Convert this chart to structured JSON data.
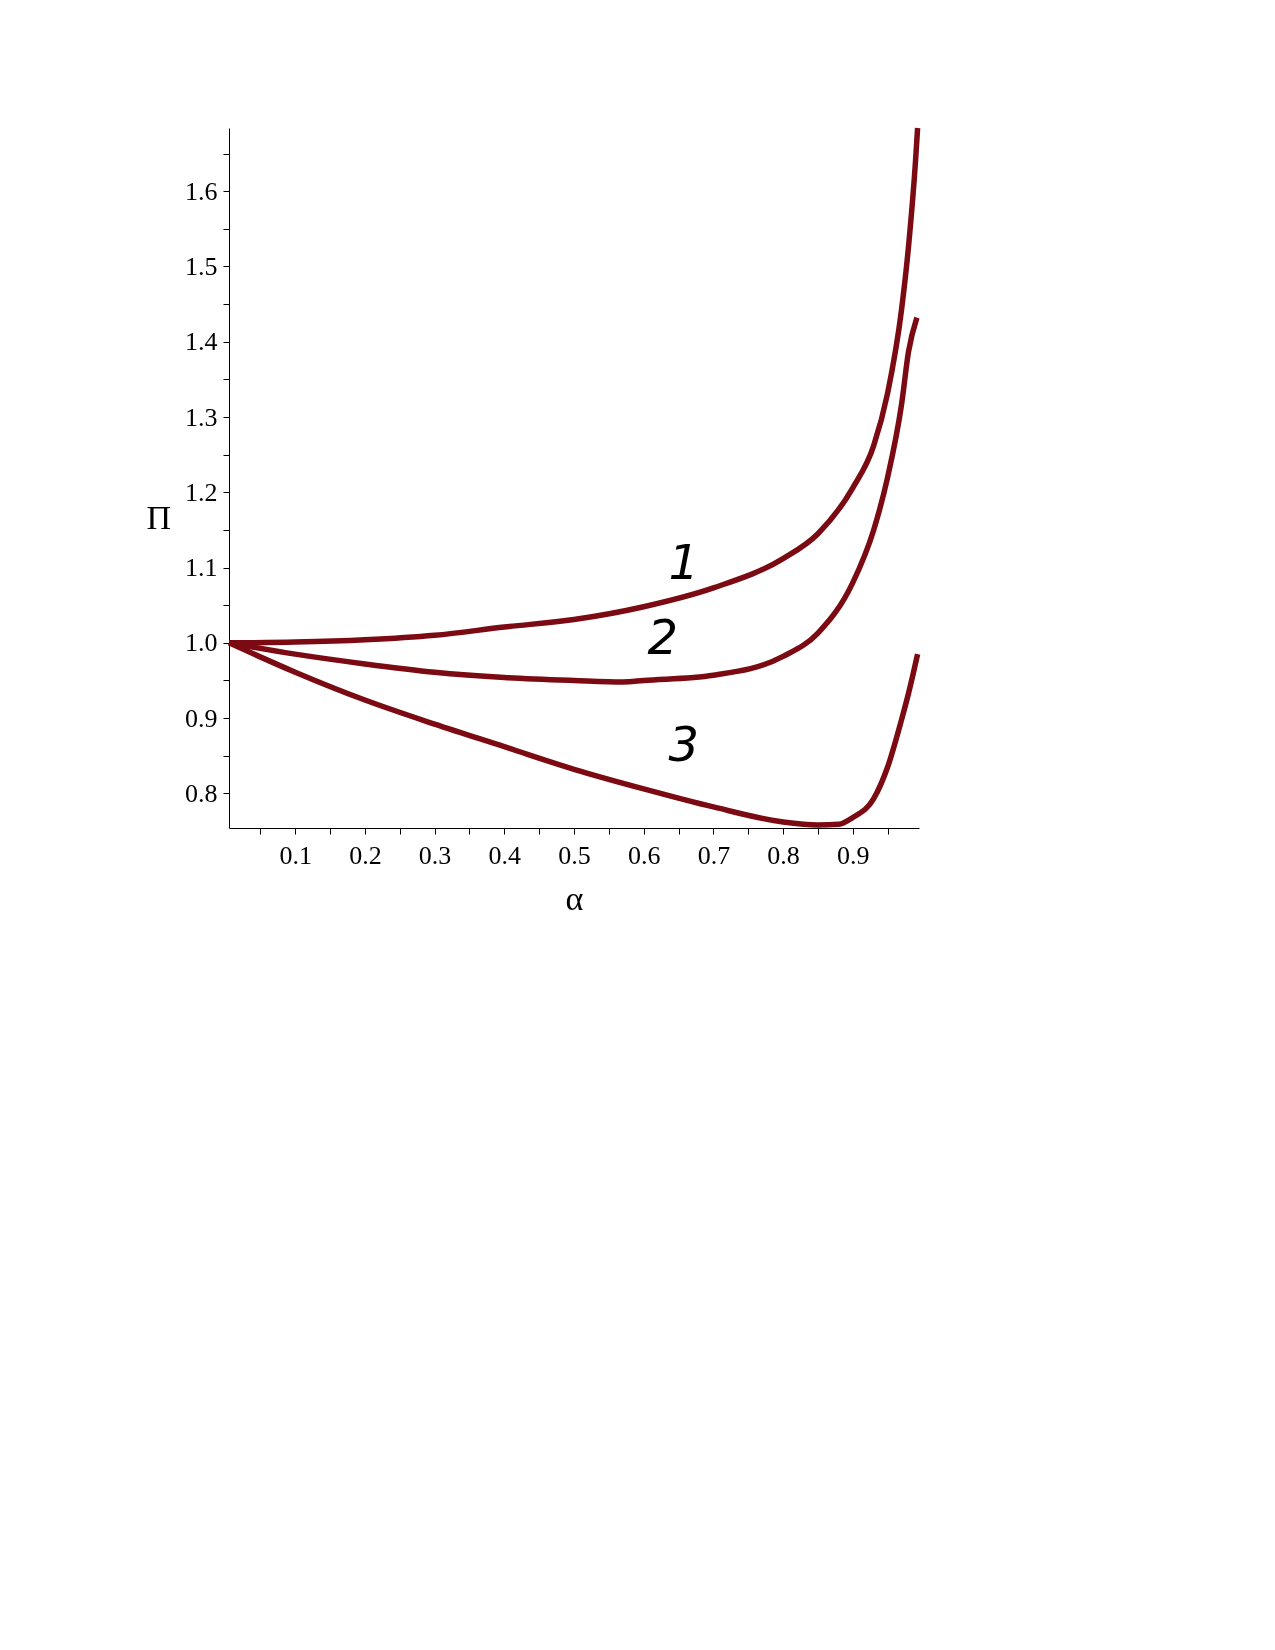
{
  "chart_data": {
    "type": "line",
    "xlabel": "α",
    "ylabel": "Π",
    "xlim": [
      0.005,
      0.995
    ],
    "ylim": [
      0.754,
      1.684
    ],
    "xticks": [
      {
        "value": 0.05,
        "label": null
      },
      0.1,
      {
        "value": 0.15,
        "label": null
      },
      0.2,
      {
        "value": 0.25,
        "label": null
      },
      0.3,
      {
        "value": 0.35,
        "label": null
      },
      0.4,
      {
        "value": 0.45,
        "label": null
      },
      0.5,
      {
        "value": 0.55,
        "label": null
      },
      0.6,
      {
        "value": 0.65,
        "label": null
      },
      0.7,
      {
        "value": 0.75,
        "label": null
      },
      0.8,
      {
        "value": 0.85,
        "label": null
      },
      0.9,
      {
        "value": 0.95,
        "label": null
      }
    ],
    "yticks": [
      0.8,
      {
        "value": 0.85,
        "label": null
      },
      0.9,
      {
        "value": 0.95,
        "label": null
      },
      {
        "value": 1.0,
        "label": "1.0"
      },
      {
        "value": 1.05,
        "label": null
      },
      1.1,
      {
        "value": 1.15,
        "label": null
      },
      1.2,
      {
        "value": 1.25,
        "label": null
      },
      1.3,
      {
        "value": 1.35,
        "label": null
      },
      1.4,
      {
        "value": 1.45,
        "label": null
      },
      1.5,
      {
        "value": 1.55,
        "label": null
      },
      1.6,
      {
        "value": 1.65,
        "label": null
      }
    ],
    "x": [
      0.005,
      0.1,
      0.2,
      0.3,
      0.4,
      0.5,
      0.6,
      0.7,
      0.8,
      0.85,
      0.9,
      0.93,
      0.95,
      0.97,
      0.98,
      0.99,
      0.993
    ],
    "series": [
      {
        "name": "1",
        "color": "#7b0a12",
        "values": [
          1.0,
          1.001,
          1.004,
          1.01,
          1.021,
          1.031,
          1.048,
          1.073,
          1.112,
          1.145,
          1.206,
          1.262,
          1.332,
          1.443,
          1.527,
          1.64,
          1.684
        ]
      },
      {
        "name": "2",
        "color": "#7b0a12",
        "x": [
          0.005,
          0.1,
          0.2,
          0.3,
          0.4,
          0.5,
          0.57,
          0.6,
          0.7,
          0.8,
          0.85,
          0.9,
          0.93,
          0.95,
          0.97,
          0.98,
          0.992
        ],
        "values": [
          1.0,
          0.985,
          0.972,
          0.961,
          0.954,
          0.95,
          0.948,
          0.95,
          0.957,
          0.982,
          1.013,
          1.08,
          1.15,
          1.22,
          1.317,
          1.387,
          1.432
        ]
      },
      {
        "name": "3",
        "color": "#7b0a12",
        "x": [
          0.005,
          0.1,
          0.2,
          0.3,
          0.4,
          0.5,
          0.6,
          0.7,
          0.8,
          0.85,
          0.88,
          0.9,
          0.93,
          0.95,
          0.97,
          0.98,
          0.993
        ],
        "values": [
          1.0,
          0.961,
          0.924,
          0.892,
          0.862,
          0.832,
          0.806,
          0.782,
          0.762,
          0.758,
          0.759,
          0.768,
          0.793,
          0.835,
          0.898,
          0.933,
          0.985
        ]
      }
    ],
    "grid": false,
    "legend": false,
    "line_style": "solid",
    "marker": "none"
  }
}
